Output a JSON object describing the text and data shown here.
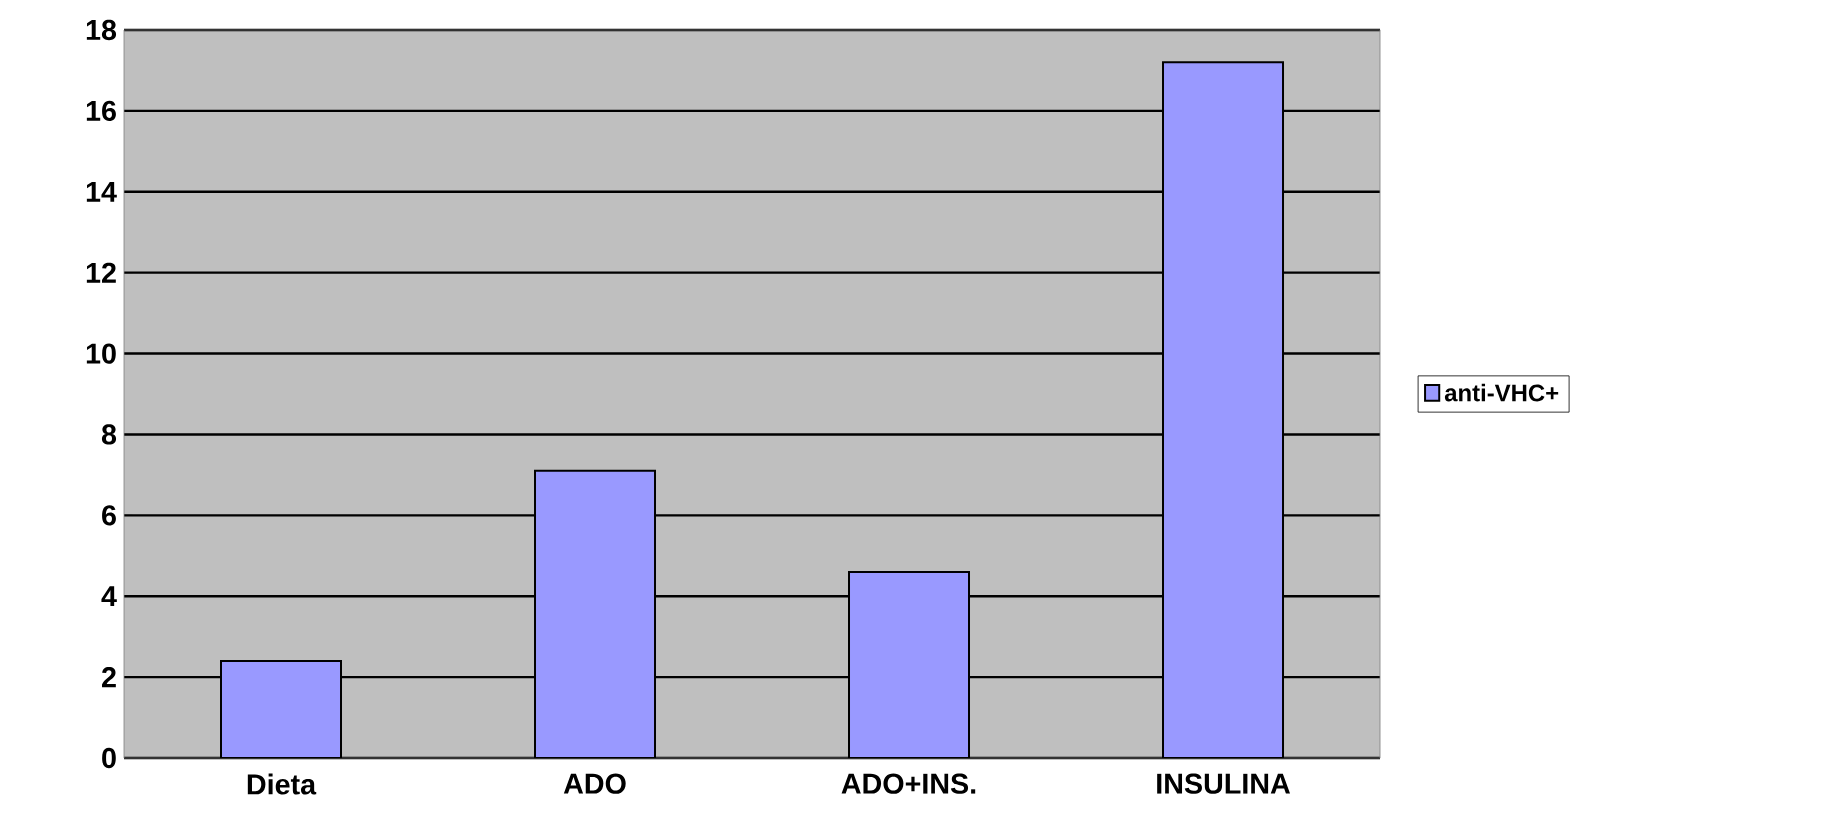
{
  "chart_data": {
    "type": "bar",
    "categories": [
      "Dieta",
      "ADO",
      "ADO+INS.",
      "INSULINA"
    ],
    "series": [
      {
        "name": "anti-VHC+",
        "color": "#9999ff",
        "values": [
          2.4,
          7.1,
          4.6,
          17.2
        ]
      }
    ],
    "ylim": [
      0,
      18
    ],
    "yticks": [
      0,
      2,
      4,
      6,
      8,
      10,
      12,
      14,
      16,
      18
    ],
    "grid": "y",
    "legend": "right"
  }
}
